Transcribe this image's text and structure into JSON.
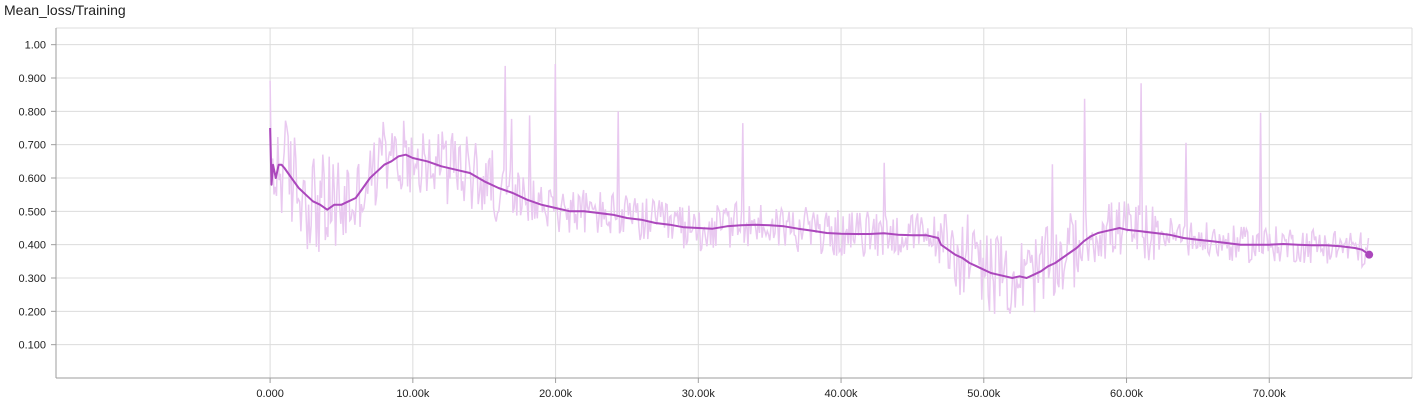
{
  "chart_data": {
    "type": "line",
    "title": "Mean_loss/Training",
    "xlabel": "",
    "ylabel": "",
    "xlim": [
      -15000,
      80000
    ],
    "ylim": [
      0,
      1.05
    ],
    "grid": true,
    "x_ticks": [
      {
        "value": 0,
        "label": "0.000"
      },
      {
        "value": 10000,
        "label": "10.00k"
      },
      {
        "value": 20000,
        "label": "20.00k"
      },
      {
        "value": 30000,
        "label": "30.00k"
      },
      {
        "value": 40000,
        "label": "40.00k"
      },
      {
        "value": 50000,
        "label": "50.00k"
      },
      {
        "value": 60000,
        "label": "60.00k"
      },
      {
        "value": 70000,
        "label": "70.00k"
      }
    ],
    "y_ticks": [
      {
        "value": 0.1,
        "label": "0.100"
      },
      {
        "value": 0.2,
        "label": "0.200"
      },
      {
        "value": 0.3,
        "label": "0.300"
      },
      {
        "value": 0.4,
        "label": "0.400"
      },
      {
        "value": 0.5,
        "label": "0.500"
      },
      {
        "value": 0.6,
        "label": "0.600"
      },
      {
        "value": 0.7,
        "label": "0.700"
      },
      {
        "value": 0.8,
        "label": "0.800"
      },
      {
        "value": 0.9,
        "label": "0.900"
      },
      {
        "value": 1.0,
        "label": "1.00"
      }
    ],
    "colors": {
      "smoothed": "#ab47bc",
      "raw": "#e9c9f0"
    },
    "series": [
      {
        "x": [
          0,
          100,
          200,
          400,
          600,
          800,
          1000,
          1500,
          2000,
          2500,
          3000,
          3500,
          4000,
          4500,
          5000,
          5500,
          6000,
          6500,
          7000,
          7500,
          8000,
          8500,
          9000,
          9500,
          10000,
          10500,
          11000,
          12000,
          13000,
          14000,
          15000,
          16000,
          17000,
          18000,
          19000,
          20000,
          21000,
          22000,
          23000,
          24000,
          25000,
          26000,
          27000,
          28000,
          29000,
          30000,
          31000,
          32000,
          33000,
          34000,
          35000,
          36000,
          37000,
          38000,
          39000,
          40000,
          41000,
          42000,
          43000,
          44000,
          45000,
          46000,
          46800,
          47000,
          47500,
          48000,
          48500,
          49000,
          49500,
          50000,
          50500,
          51000,
          51500,
          52000,
          52500,
          53000,
          53500,
          54000,
          54500,
          55000,
          55500,
          56000,
          56500,
          57000,
          57500,
          58000,
          58500,
          59000,
          59500,
          60000,
          61000,
          62000,
          63000,
          64000,
          65000,
          66000,
          67000,
          68000,
          69000,
          70000,
          71000,
          72000,
          73000,
          74000,
          75000,
          76000,
          76500,
          77000
        ],
        "values": [
          0.75,
          0.58,
          0.64,
          0.6,
          0.64,
          0.64,
          0.63,
          0.6,
          0.57,
          0.55,
          0.53,
          0.52,
          0.505,
          0.52,
          0.52,
          0.53,
          0.54,
          0.57,
          0.6,
          0.62,
          0.64,
          0.65,
          0.665,
          0.67,
          0.66,
          0.655,
          0.65,
          0.635,
          0.625,
          0.615,
          0.59,
          0.57,
          0.555,
          0.535,
          0.52,
          0.51,
          0.5,
          0.5,
          0.495,
          0.49,
          0.48,
          0.475,
          0.465,
          0.46,
          0.452,
          0.45,
          0.448,
          0.455,
          0.458,
          0.46,
          0.458,
          0.455,
          0.448,
          0.442,
          0.435,
          0.433,
          0.432,
          0.432,
          0.434,
          0.43,
          0.428,
          0.428,
          0.42,
          0.4,
          0.385,
          0.37,
          0.36,
          0.345,
          0.335,
          0.325,
          0.315,
          0.31,
          0.305,
          0.3,
          0.305,
          0.3,
          0.31,
          0.32,
          0.335,
          0.345,
          0.36,
          0.375,
          0.39,
          0.41,
          0.425,
          0.435,
          0.44,
          0.445,
          0.45,
          0.445,
          0.44,
          0.435,
          0.43,
          0.42,
          0.415,
          0.41,
          0.405,
          0.4,
          0.4,
          0.4,
          0.402,
          0.4,
          0.398,
          0.398,
          0.395,
          0.39,
          0.385,
          0.37
        ]
      }
    ]
  }
}
